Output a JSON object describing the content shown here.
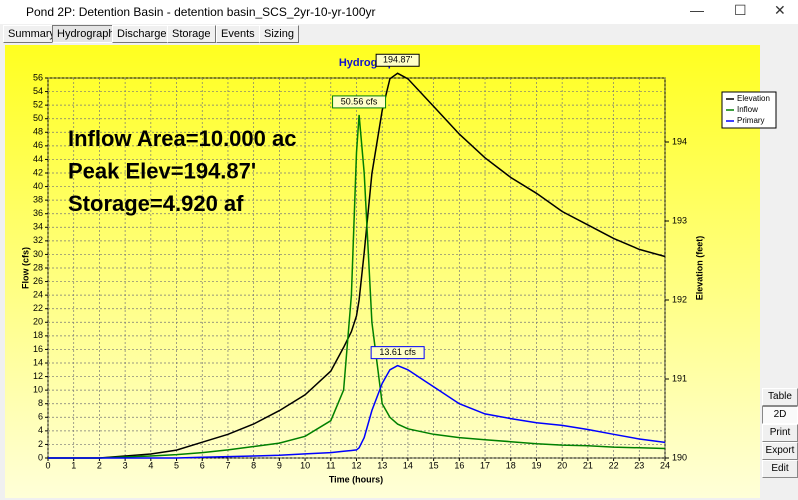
{
  "window": {
    "title": "Pond 2P: Detention Basin - detention basin_SCS_2yr-10-yr-100yr",
    "tabs": [
      "Summary",
      "Hydrograph",
      "Discharge",
      "Storage",
      "Events",
      "Sizing"
    ],
    "buttons": [
      "Table",
      "2D",
      "Print",
      "Export",
      "Edit"
    ]
  },
  "chart_data": {
    "type": "line",
    "title": "Hydrograph",
    "xlabel": "Time (hours)",
    "ylabel": "Flow (cfs)",
    "y2label": "Elevation (feet)",
    "annotations": [
      "Inflow Area=10.000 ac",
      "Peak Elev=194.87'",
      "Storage=4.920 af"
    ],
    "x": [
      0,
      2,
      4,
      5,
      6,
      7,
      8,
      9,
      10,
      11,
      11.5,
      11.8,
      12,
      12.1,
      12.3,
      12.6,
      13,
      13.3,
      13.6,
      14,
      15,
      16,
      17,
      18,
      19,
      20,
      21,
      22,
      23,
      24
    ],
    "series": [
      {
        "name": "Elevation",
        "color": "#000000",
        "axis": "y2",
        "values": [
          190,
          190,
          190.05,
          190.1,
          190.2,
          190.3,
          190.43,
          190.6,
          190.8,
          191.1,
          191.4,
          191.6,
          191.8,
          192.0,
          192.6,
          193.6,
          194.4,
          194.8,
          194.87,
          194.8,
          194.45,
          194.1,
          193.8,
          193.55,
          193.35,
          193.12,
          192.95,
          192.78,
          192.64,
          192.55
        ],
        "value_labels": [
          null,
          null,
          null,
          null,
          null,
          null,
          null,
          null,
          null,
          null,
          null,
          null,
          null,
          null,
          null,
          null,
          null,
          null,
          "194.87'",
          null,
          null,
          null,
          null,
          null,
          null,
          null,
          null,
          null,
          null,
          null
        ]
      },
      {
        "name": "Inflow",
        "color": "#008000",
        "values": [
          0,
          0,
          0.3,
          0.5,
          0.8,
          1.2,
          1.7,
          2.2,
          3.2,
          5.5,
          10,
          24,
          45,
          50.56,
          42,
          20,
          8,
          6,
          5,
          4.3,
          3.5,
          3,
          2.7,
          2.4,
          2.1,
          1.9,
          1.8,
          1.6,
          1.5,
          1.4
        ],
        "value_labels": [
          null,
          null,
          null,
          null,
          null,
          null,
          null,
          null,
          null,
          null,
          null,
          null,
          null,
          "50.56 cfs",
          null,
          null,
          null,
          null,
          null,
          null,
          null,
          null,
          null,
          null,
          null,
          null,
          null,
          null,
          null,
          null
        ]
      },
      {
        "name": "Primary",
        "color": "#0000ff",
        "values": [
          0,
          0,
          0,
          0,
          0.1,
          0.2,
          0.3,
          0.4,
          0.6,
          0.8,
          1,
          1.1,
          1.2,
          1.5,
          3,
          7,
          11,
          13,
          13.61,
          13,
          10.5,
          8,
          6.5,
          5.8,
          5.2,
          4.8,
          4.2,
          3.5,
          2.8,
          2.3
        ],
        "value_labels": [
          null,
          null,
          null,
          null,
          null,
          null,
          null,
          null,
          null,
          null,
          null,
          null,
          null,
          null,
          null,
          null,
          null,
          null,
          "13.61 cfs",
          null,
          null,
          null,
          null,
          null,
          null,
          null,
          null,
          null,
          null,
          null
        ]
      }
    ],
    "xlim": [
      0,
      24
    ],
    "xticks": [
      0,
      1,
      2,
      3,
      4,
      5,
      6,
      7,
      8,
      9,
      10,
      11,
      12,
      13,
      14,
      15,
      16,
      17,
      18,
      19,
      20,
      21,
      22,
      23,
      24
    ],
    "ylim": [
      0,
      56
    ],
    "yticks": [
      0,
      2,
      4,
      6,
      8,
      10,
      12,
      14,
      16,
      18,
      20,
      22,
      24,
      26,
      28,
      30,
      32,
      34,
      36,
      38,
      40,
      42,
      44,
      46,
      48,
      50,
      52,
      54,
      56
    ],
    "y2lim": [
      190,
      194.81
    ],
    "y2ticks": [
      190,
      191,
      192,
      193,
      194
    ],
    "grid": true,
    "legend": "upper right"
  }
}
